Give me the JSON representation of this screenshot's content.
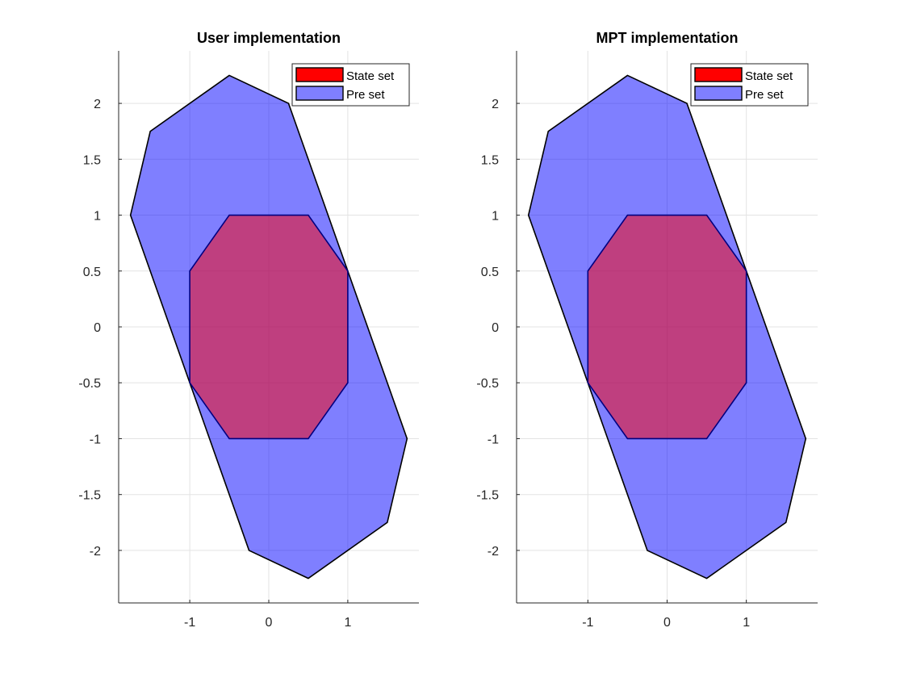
{
  "chart_data": [
    {
      "type": "area",
      "title": "User implementation",
      "xlabel": "",
      "ylabel": "",
      "xlim": [
        -1.9,
        1.9
      ],
      "ylim": [
        -2.47,
        2.47
      ],
      "xticks": [
        -1,
        0,
        1
      ],
      "yticks": [
        -2,
        -1.5,
        -1,
        -0.5,
        0,
        0.5,
        1,
        1.5,
        2
      ],
      "xtick_labels": [
        "-1",
        "0",
        "1"
      ],
      "ytick_labels": [
        "-2",
        "-1.5",
        "-1",
        "-0.5",
        "0",
        "0.5",
        "1",
        "1.5",
        "2"
      ],
      "grid": true,
      "legend_position": "top-right",
      "series": [
        {
          "name": "State set",
          "color": "#ff0000",
          "vertices": [
            [
              -0.5,
              1
            ],
            [
              0.5,
              1
            ],
            [
              1,
              0.5
            ],
            [
              1,
              -0.5
            ],
            [
              0.5,
              -1
            ],
            [
              -0.5,
              -1
            ],
            [
              -1,
              -0.5
            ],
            [
              -1,
              0.5
            ]
          ]
        },
        {
          "name": "Pre set",
          "color": "#0000ff",
          "vertices": [
            [
              -0.5,
              2.25
            ],
            [
              0.25,
              2
            ],
            [
              1.75,
              -1
            ],
            [
              1.5,
              -1.75
            ],
            [
              0.5,
              -2.25
            ],
            [
              -0.25,
              -2
            ],
            [
              -1.75,
              1
            ],
            [
              -1.5,
              1.75
            ]
          ]
        }
      ]
    },
    {
      "type": "area",
      "title": "MPT implementation",
      "xlabel": "",
      "ylabel": "",
      "xlim": [
        -1.9,
        1.9
      ],
      "ylim": [
        -2.47,
        2.47
      ],
      "xticks": [
        -1,
        0,
        1
      ],
      "yticks": [
        -2,
        -1.5,
        -1,
        -0.5,
        0,
        0.5,
        1,
        1.5,
        2
      ],
      "xtick_labels": [
        "-1",
        "0",
        "1"
      ],
      "ytick_labels": [
        "-2",
        "-1.5",
        "-1",
        "-0.5",
        "0",
        "0.5",
        "1",
        "1.5",
        "2"
      ],
      "grid": true,
      "legend_position": "top-right",
      "series": [
        {
          "name": "State set",
          "color": "#ff0000",
          "vertices": [
            [
              -0.5,
              1
            ],
            [
              0.5,
              1
            ],
            [
              1,
              0.5
            ],
            [
              1,
              -0.5
            ],
            [
              0.5,
              -1
            ],
            [
              -0.5,
              -1
            ],
            [
              -1,
              -0.5
            ],
            [
              -1,
              0.5
            ]
          ]
        },
        {
          "name": "Pre set",
          "color": "#0000ff",
          "vertices": [
            [
              -0.5,
              2.25
            ],
            [
              0.25,
              2
            ],
            [
              1.75,
              -1
            ],
            [
              1.5,
              -1.75
            ],
            [
              0.5,
              -2.25
            ],
            [
              -0.25,
              -2
            ],
            [
              -1.75,
              1
            ],
            [
              -1.5,
              1.75
            ]
          ]
        }
      ]
    }
  ]
}
